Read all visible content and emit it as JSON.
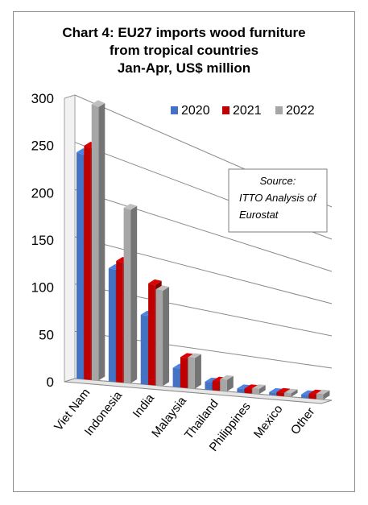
{
  "title_lines": [
    "Chart 4: EU27 imports wood furniture",
    "from tropical countries",
    "Jan-Apr, US$ million"
  ],
  "source_lines": [
    "Source:",
    "ITTO Analysis of",
    "Eurostat"
  ],
  "chart_data": {
    "type": "bar",
    "title": "Chart 4: EU27 imports wood furniture from tropical countries Jan-Apr, US$ million",
    "categories": [
      "Viet Nam",
      "Indonesia",
      "India",
      "Malaysia",
      "Thailand",
      "Philippines",
      "Mexico",
      "Other"
    ],
    "series": [
      {
        "name": "2020",
        "color": "#4472c4",
        "values": [
          240,
          125,
          80,
          23,
          10,
          5,
          4,
          5
        ]
      },
      {
        "name": "2021",
        "color": "#c00000",
        "values": [
          250,
          135,
          118,
          37,
          12,
          6,
          5,
          7
        ]
      },
      {
        "name": "2022",
        "color": "#a6a6a6",
        "values": [
          298,
          197,
          113,
          38,
          15,
          7,
          5,
          8
        ]
      }
    ],
    "ylim": [
      0,
      300
    ],
    "yticks": [
      0,
      50,
      100,
      150,
      200,
      250,
      300
    ],
    "grid": true,
    "legend_position": "top-right",
    "three_d": true
  }
}
